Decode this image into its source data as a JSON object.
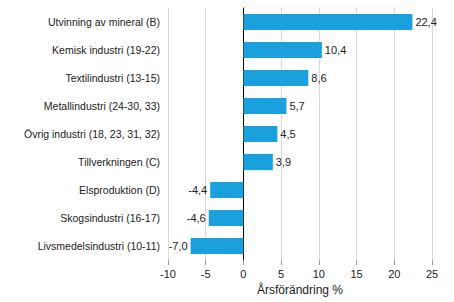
{
  "chart_data": {
    "type": "bar",
    "orientation": "horizontal",
    "x_label": "Årsförändring %",
    "categories": [
      "Utvinning av mineral (B)",
      "Kemisk industri (19-22)",
      "Textilindustri (13-15)",
      "Metallindustri (24-30, 33)",
      "Övrig industri (18, 23, 31, 32)",
      "Tillverkningen (C)",
      "Elsproduktion (D)",
      "Skogsindustri (16-17)",
      "Livsmedelsindustri (10-11)"
    ],
    "values": [
      22.4,
      10.4,
      8.6,
      5.7,
      4.5,
      3.9,
      -4.4,
      -4.6,
      -7.0
    ],
    "value_labels": [
      "22,4",
      "10,4",
      "8,6",
      "5,7",
      "4,5",
      "3,9",
      "-4,4",
      "-4,6",
      "-7,0"
    ],
    "data_labels": true,
    "color": "#1aa0dc",
    "xlim": [
      -10,
      25
    ],
    "xticks": [
      -10,
      -5,
      0,
      5,
      10,
      15,
      20,
      25
    ],
    "grid": true
  }
}
